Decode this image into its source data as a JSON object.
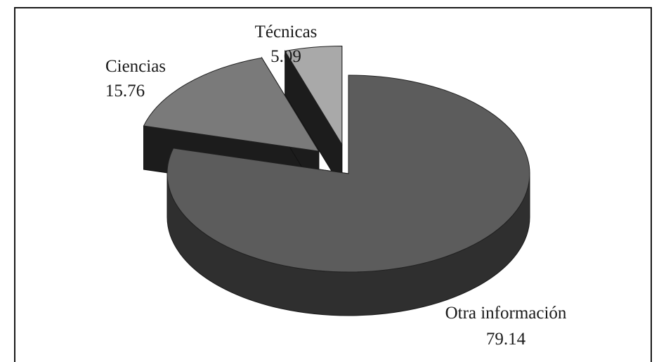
{
  "chart_data": {
    "type": "pie",
    "title": "",
    "slices": [
      {
        "label": "Otra información",
        "value": 79.14,
        "top_color": "#5c5c5c",
        "side_color": "#2f2f2f",
        "exploded": false
      },
      {
        "label": "Ciencias",
        "value": 15.76,
        "top_color": "#7a7a7a",
        "side_color": "#222222",
        "exploded": true
      },
      {
        "label": "Técnicas",
        "value": 5.09,
        "top_color": "#a9a9a9",
        "side_color": "#2e2e2e",
        "exploded": true
      }
    ],
    "three_d": true,
    "legend": "none",
    "value_labels": [
      "79.14",
      "15.76",
      "5.09"
    ]
  }
}
